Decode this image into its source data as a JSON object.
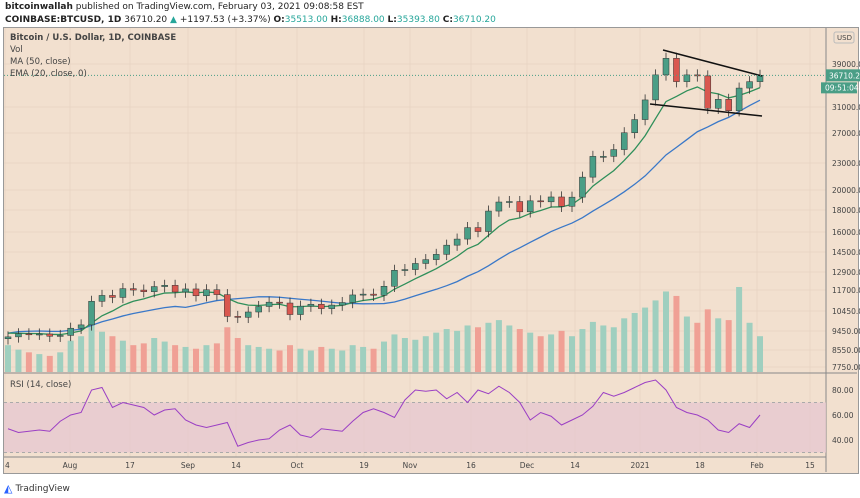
{
  "header": {
    "publisher": "bitcoinwallah",
    "published_text": " published on TradingView.com, February 03, 2021 09:08:58 EST",
    "symbol": "COINBASE:BTCUSD, 1D",
    "last": "36710.20",
    "change": "+1197.53 (+3.37%)",
    "o_label": "O:",
    "o": "35513.00",
    "h_label": "H:",
    "h": "36888.00",
    "l_label": "L:",
    "l": "35393.80",
    "c_label": "C:",
    "c": "36710.20"
  },
  "legend": {
    "title": "Bitcoin / U.S. Dollar, 1D, COINBASE",
    "vol": "Vol",
    "ma": "MA (50, close)",
    "ema": "EMA (20, close, 0)",
    "rsi": "RSI (14, close)"
  },
  "price_axis": {
    "currency": "USD",
    "ticks": [
      "39000.00",
      "31000.00",
      "27000.00",
      "23000.00",
      "20000.00",
      "18000.00",
      "16000.00",
      "14500.00",
      "12900.00",
      "11700.00",
      "10450.00",
      "9450.00",
      "8550.00",
      "7750.00"
    ],
    "last_price": "36710.20",
    "countdown": "09:51:04"
  },
  "rsi_axis": {
    "ticks": [
      "80.00",
      "60.00",
      "40.00"
    ]
  },
  "time_axis": {
    "ticks": [
      "4",
      "Aug",
      "17",
      "Sep",
      "14",
      "Oct",
      "19",
      "Nov",
      "16",
      "Dec",
      "14",
      "2021",
      "18",
      "Feb",
      "15"
    ]
  },
  "brand": "TradingView",
  "colors": {
    "up": "#4a9e86",
    "down": "#d9574f",
    "ma": "#3a78c8",
    "ema": "#2f8f5a",
    "rsi": "#9b3fc4",
    "background": "#f2e0cf"
  },
  "chart_data": {
    "type": "candlestick",
    "scale": "log",
    "sampling": "every 3 days, Jul 4 2020 – Feb 3 2021",
    "close": [
      9100,
      9250,
      9230,
      9240,
      9130,
      9170,
      9530,
      9700,
      11000,
      11350,
      11230,
      11770,
      11680,
      11580,
      11900,
      11980,
      11560,
      11750,
      11330,
      11700,
      11400,
      10150,
      10100,
      10390,
      10700,
      10950,
      10900,
      10250,
      10720,
      10830,
      10580,
      10780,
      10930,
      11380,
      11430,
      11360,
      11920,
      12980,
      13030,
      13460,
      13740,
      14130,
      14840,
      15330,
      16300,
      15960,
      17800,
      18680,
      18730,
      17730,
      18800,
      18700,
      19190,
      18260,
      19170,
      21330,
      23830,
      23830,
      24710,
      27030,
      29000,
      32200,
      36800,
      40200,
      35500,
      36800,
      36600,
      30800,
      32300,
      30400,
      34300,
      35500,
      36710
    ],
    "volume": [
      30,
      25,
      22,
      20,
      18,
      22,
      35,
      40,
      55,
      45,
      40,
      35,
      30,
      32,
      38,
      34,
      30,
      28,
      26,
      30,
      32,
      50,
      38,
      30,
      28,
      26,
      24,
      30,
      26,
      24,
      28,
      26,
      24,
      30,
      28,
      26,
      34,
      42,
      38,
      36,
      40,
      44,
      48,
      46,
      52,
      50,
      55,
      58,
      52,
      48,
      44,
      40,
      42,
      46,
      40,
      48,
      56,
      52,
      50,
      60,
      66,
      72,
      80,
      90,
      85,
      62,
      55,
      70,
      60,
      58,
      95,
      55,
      40
    ],
    "rsi": [
      49,
      46,
      47,
      48,
      47,
      55,
      60,
      62,
      80,
      82,
      66,
      70,
      68,
      66,
      60,
      64,
      65,
      56,
      52,
      50,
      52,
      54,
      35,
      38,
      40,
      41,
      48,
      52,
      44,
      42,
      49,
      48,
      47,
      55,
      62,
      65,
      62,
      58,
      72,
      80,
      79,
      80,
      73,
      78,
      70,
      80,
      77,
      83,
      78,
      70,
      56,
      62,
      59,
      52,
      56,
      60,
      67,
      78,
      75,
      78,
      82,
      86,
      88,
      80,
      66,
      62,
      60,
      56,
      48,
      46,
      53,
      50,
      60
    ],
    "ylim": [
      7750,
      41000
    ],
    "rsi_range": [
      25,
      90
    ],
    "overbought": 70,
    "oversold": 30
  }
}
